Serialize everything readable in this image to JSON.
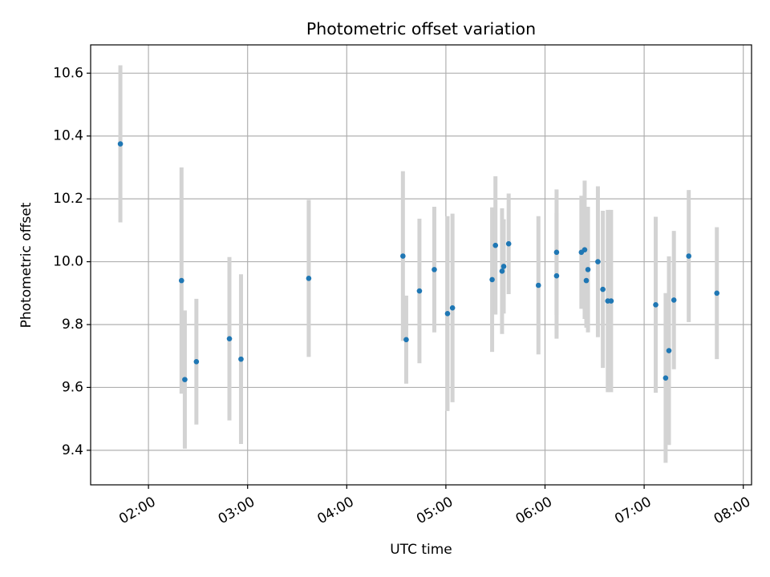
{
  "chart_data": {
    "type": "scatter",
    "title": "Photometric offset variation",
    "xlabel": "UTC time",
    "ylabel": "Photometric offset",
    "x_axis_type": "time",
    "xlim": [
      "01:25",
      "08:05"
    ],
    "ylim": [
      9.29,
      10.69
    ],
    "grid": true,
    "marker_color": "#1f77b4",
    "errorbar_color": "#d3d3d3",
    "x_ticks": [
      "02:00",
      "03:00",
      "04:00",
      "05:00",
      "06:00",
      "07:00",
      "08:00"
    ],
    "y_ticks": [
      9.4,
      9.6,
      9.8,
      10.0,
      10.2,
      10.4,
      10.6
    ],
    "y_tick_labels": [
      "9.4",
      "9.6",
      "9.8",
      "10.0",
      "10.2",
      "10.4",
      "10.6"
    ],
    "points": [
      {
        "x": "01:43",
        "y": 10.375,
        "err": 0.25
      },
      {
        "x": "02:20",
        "y": 9.94,
        "err": 0.36
      },
      {
        "x": "02:22",
        "y": 9.625,
        "err": 0.22
      },
      {
        "x": "02:29",
        "y": 9.682,
        "err": 0.2
      },
      {
        "x": "02:49",
        "y": 9.755,
        "err": 0.26
      },
      {
        "x": "02:56",
        "y": 9.69,
        "err": 0.27
      },
      {
        "x": "03:37",
        "y": 9.947,
        "err": 0.25
      },
      {
        "x": "04:34",
        "y": 10.018,
        "err": 0.27
      },
      {
        "x": "04:36",
        "y": 9.752,
        "err": 0.14
      },
      {
        "x": "04:44",
        "y": 9.907,
        "err": 0.23
      },
      {
        "x": "04:53",
        "y": 9.975,
        "err": 0.2
      },
      {
        "x": "05:01",
        "y": 9.835,
        "err": 0.31
      },
      {
        "x": "05:04",
        "y": 9.853,
        "err": 0.3
      },
      {
        "x": "05:28",
        "y": 9.943,
        "err": 0.23
      },
      {
        "x": "05:30",
        "y": 10.052,
        "err": 0.22
      },
      {
        "x": "05:34",
        "y": 9.97,
        "err": 0.2
      },
      {
        "x": "05:35",
        "y": 9.985,
        "err": 0.15
      },
      {
        "x": "05:38",
        "y": 10.057,
        "err": 0.16
      },
      {
        "x": "05:56",
        "y": 9.925,
        "err": 0.22
      },
      {
        "x": "06:07",
        "y": 10.03,
        "err": 0.2
      },
      {
        "x": "06:07",
        "y": 9.955,
        "err": 0.2
      },
      {
        "x": "06:22",
        "y": 10.03,
        "err": 0.18
      },
      {
        "x": "06:24",
        "y": 10.038,
        "err": 0.22
      },
      {
        "x": "06:25",
        "y": 9.94,
        "err": 0.15
      },
      {
        "x": "06:26",
        "y": 9.975,
        "err": 0.2
      },
      {
        "x": "06:32",
        "y": 10.0,
        "err": 0.24
      },
      {
        "x": "06:35",
        "y": 9.912,
        "err": 0.25
      },
      {
        "x": "06:38",
        "y": 9.875,
        "err": 0.29
      },
      {
        "x": "06:40",
        "y": 9.875,
        "err": 0.29
      },
      {
        "x": "07:07",
        "y": 9.863,
        "err": 0.28
      },
      {
        "x": "07:13",
        "y": 9.63,
        "err": 0.27
      },
      {
        "x": "07:15",
        "y": 9.717,
        "err": 0.3
      },
      {
        "x": "07:18",
        "y": 9.878,
        "err": 0.22
      },
      {
        "x": "07:27",
        "y": 10.018,
        "err": 0.21
      },
      {
        "x": "07:44",
        "y": 9.9,
        "err": 0.21
      }
    ]
  }
}
